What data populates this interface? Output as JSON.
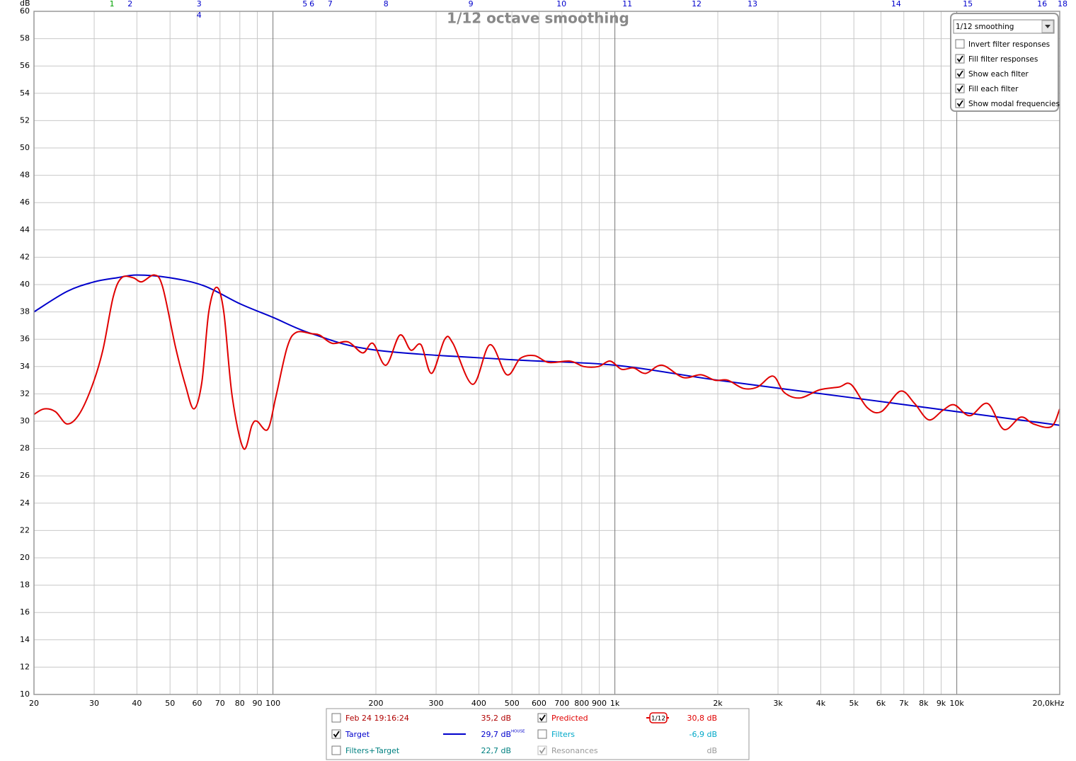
{
  "chart_data": {
    "type": "line",
    "title": "1/12 octave smoothing",
    "y_label": "dB",
    "xscale": "log",
    "xlim": [
      20,
      20000
    ],
    "ylim": [
      10,
      60
    ],
    "grid": true,
    "xticks": [
      20,
      30,
      40,
      50,
      60,
      70,
      80,
      90,
      100,
      200,
      300,
      400,
      500,
      600,
      700,
      800,
      900,
      {
        "value": 1000,
        "label": "1k"
      },
      {
        "value": 2000,
        "label": "2k"
      },
      {
        "value": 3000,
        "label": "3k"
      },
      {
        "value": 4000,
        "label": "4k"
      },
      {
        "value": 5000,
        "label": "5k"
      },
      {
        "value": 6000,
        "label": "6k"
      },
      {
        "value": 7000,
        "label": "7k"
      },
      {
        "value": 8000,
        "label": "8k"
      },
      {
        "value": 9000,
        "label": "9k"
      },
      {
        "value": 10000,
        "label": "10k"
      },
      {
        "value": 20000,
        "label": "20,0kHz"
      }
    ],
    "yticks": [
      10,
      12,
      14,
      16,
      18,
      20,
      22,
      24,
      26,
      28,
      30,
      32,
      34,
      36,
      38,
      40,
      42,
      44,
      46,
      48,
      50,
      52,
      54,
      56,
      58,
      60
    ],
    "series": [
      {
        "name": "Predicted",
        "color": "#e00000",
        "checked": true,
        "value_text": "30,8 dB",
        "icon": "1/12",
        "x": [
          20,
          21.4,
          23.1,
          25.0,
          27.1,
          29.6,
          31.8,
          34.1,
          36.1,
          39.0,
          41.3,
          45.0,
          47.6,
          51.9,
          55.5,
          58.7,
          61.9,
          64.9,
          68.4,
          71.8,
          76.0,
          82.0,
          86.8,
          89.8,
          96.5,
          102,
          110,
          117,
          130,
          137,
          149,
          166,
          183,
          196,
          214,
          235,
          253,
          271,
          291,
          318,
          336,
          384,
          431,
          483,
          529,
          582,
          640,
          739,
          812,
          894,
          969,
          1046,
          1134,
          1230,
          1373,
          1583,
          1784,
          1962,
          2138,
          2376,
          2612,
          2900,
          3130,
          3478,
          3974,
          4518,
          4902,
          5470,
          6016,
          6842,
          7526,
          8280,
          9106,
          9828,
          10916,
          12302,
          13726,
          15384,
          16762,
          18892,
          20000
        ],
        "values": [
          30.5,
          30.9,
          30.7,
          29.8,
          30.5,
          32.6,
          35.2,
          39.1,
          40.5,
          40.5,
          40.2,
          40.7,
          39.8,
          35.4,
          32.6,
          30.9,
          32.8,
          38.0,
          39.8,
          38.0,
          31.8,
          28.0,
          29.7,
          30.0,
          29.4,
          31.8,
          35.4,
          36.5,
          36.4,
          36.3,
          35.7,
          35.8,
          35.0,
          35.7,
          34.1,
          36.3,
          35.2,
          35.6,
          33.5,
          36.0,
          35.7,
          32.7,
          35.6,
          33.4,
          34.6,
          34.8,
          34.3,
          34.4,
          34.0,
          34.0,
          34.4,
          33.8,
          33.9,
          33.5,
          34.1,
          33.2,
          33.4,
          33.0,
          33.0,
          32.4,
          32.5,
          33.3,
          32.1,
          31.7,
          32.3,
          32.5,
          32.7,
          31.0,
          30.7,
          32.2,
          31.3,
          30.1,
          30.8,
          31.2,
          30.4,
          31.3,
          29.4,
          30.3,
          29.8,
          29.6,
          30.9
        ]
      },
      {
        "name": "Target",
        "color": "#0000cc",
        "checked": true,
        "value_text": "29,7 dB",
        "superscript": "HOUSE",
        "x": [
          20,
          25,
          30,
          35,
          40,
          50,
          63,
          80,
          100,
          130,
          200,
          500,
          1000,
          2000,
          5000,
          10000,
          20000
        ],
        "values": [
          38.0,
          39.5,
          40.2,
          40.5,
          40.7,
          40.5,
          39.9,
          38.6,
          37.6,
          36.4,
          35.2,
          34.5,
          34.1,
          33.0,
          31.7,
          30.7,
          29.7
        ]
      }
    ],
    "filter_markers": [
      {
        "label": "1",
        "x": 33.8,
        "color": "#00a000"
      },
      {
        "label": "2",
        "x": 38.2,
        "color": "#0000cc"
      },
      {
        "label": "3",
        "x": 60.8,
        "color": "#0000cc"
      },
      {
        "label": "4",
        "x": 60.8,
        "color": "#0000cc"
      },
      {
        "label": "5",
        "x": 124,
        "color": "#0000cc"
      },
      {
        "label": "6",
        "x": 130,
        "color": "#0000cc"
      },
      {
        "label": "7",
        "x": 147,
        "color": "#0000cc"
      },
      {
        "label": "8",
        "x": 214,
        "color": "#0000cc"
      },
      {
        "label": "9",
        "x": 379,
        "color": "#0000cc"
      },
      {
        "label": "10",
        "x": 698,
        "color": "#0000cc"
      },
      {
        "label": "11",
        "x": 1087,
        "color": "#0000cc"
      },
      {
        "label": "12",
        "x": 1734,
        "color": "#0000cc"
      },
      {
        "label": "13",
        "x": 2526,
        "color": "#0000cc"
      },
      {
        "label": "14",
        "x": 6645,
        "color": "#0000cc"
      },
      {
        "label": "15",
        "x": 10766,
        "color": "#0000cc"
      },
      {
        "label": "16",
        "x": 17768,
        "color": "#0000cc"
      },
      {
        "label": "18",
        "x": 20386,
        "color": "#0000cc"
      }
    ]
  },
  "options_panel": {
    "dropdown": "1/12 smoothing",
    "options": [
      {
        "label": "Invert filter responses",
        "checked": false
      },
      {
        "label": "Fill filter responses",
        "checked": true
      },
      {
        "label": "Show each filter",
        "checked": true
      },
      {
        "label": "Fill each filter",
        "checked": true
      },
      {
        "label": "Show modal frequencies",
        "checked": true
      }
    ]
  },
  "legend_panel": {
    "items": [
      {
        "label": "Feb 24 19:16:24",
        "value": "35,2 dB",
        "checked": false,
        "color": "#b00000"
      },
      {
        "label": "Filters",
        "value": "-6,9 dB",
        "checked": false,
        "color": "#00a8c8"
      },
      {
        "label": "Filters+Target",
        "value": "22,7 dB",
        "checked": false,
        "color": "#008080"
      },
      {
        "label": "Resonances",
        "value": "dB",
        "checked": true,
        "color": "#999999"
      }
    ]
  }
}
